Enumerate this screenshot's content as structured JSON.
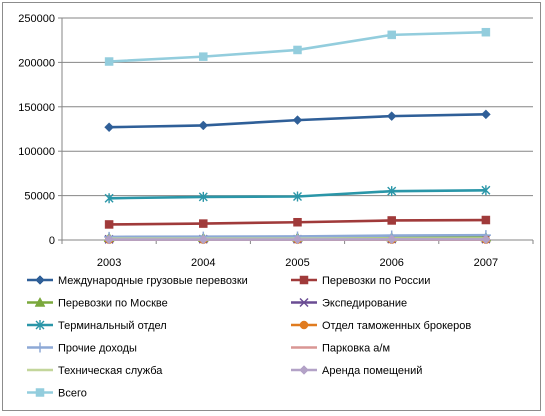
{
  "chart_data": {
    "type": "line",
    "categories": [
      "2003",
      "2004",
      "2005",
      "2006",
      "2007"
    ],
    "ylim": [
      0,
      250000
    ],
    "yticks": [
      0,
      50000,
      100000,
      150000,
      200000,
      250000
    ],
    "ytick_labels": [
      "0",
      "50000",
      "100000",
      "150000",
      "200000",
      "250000"
    ],
    "grid": true,
    "legend_position": "bottom",
    "series": [
      {
        "name": "Международные грузовые перевозки",
        "color": "#2f5f98",
        "marker": "diamond",
        "values": [
          127000,
          129000,
          135000,
          139500,
          141500
        ]
      },
      {
        "name": "Перевозки по России",
        "color": "#a03a3a",
        "marker": "square",
        "values": [
          17500,
          18500,
          20000,
          22000,
          22500
        ]
      },
      {
        "name": "Перевозки по Москве",
        "color": "#7aa83c",
        "marker": "triangle",
        "values": [
          2500,
          2500,
          2800,
          3000,
          3000
        ]
      },
      {
        "name": "Экспедирование",
        "color": "#6a4c93",
        "marker": "x",
        "values": [
          800,
          900,
          900,
          1000,
          1000
        ]
      },
      {
        "name": "Терминальный отдел",
        "color": "#2a96a8",
        "marker": "star",
        "values": [
          47000,
          48500,
          49000,
          55000,
          56000
        ]
      },
      {
        "name": "Отдел таможенных брокеров",
        "color": "#e07b1f",
        "marker": "circle",
        "values": [
          300,
          300,
          300,
          300,
          300
        ]
      },
      {
        "name": "Прочие доходы",
        "color": "#8da9d6",
        "marker": "plus",
        "values": [
          3500,
          3800,
          4000,
          5000,
          5500
        ]
      },
      {
        "name": "Парковка а/м",
        "color": "#d99694",
        "marker": "none",
        "values": [
          500,
          500,
          500,
          500,
          500
        ]
      },
      {
        "name": "Техническая служба",
        "color": "#c3d69b",
        "marker": "none",
        "values": [
          1500,
          1500,
          1500,
          1600,
          1600
        ]
      },
      {
        "name": "Аренда помещений",
        "color": "#b3a2c7",
        "marker": "diamond",
        "values": [
          500,
          500,
          500,
          600,
          600
        ]
      },
      {
        "name": "Всего",
        "color": "#93cddd",
        "marker": "square",
        "values": [
          201000,
          206500,
          214000,
          231000,
          234000
        ]
      }
    ]
  }
}
